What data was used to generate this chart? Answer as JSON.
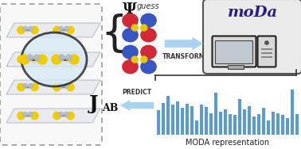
{
  "bar_values": [
    0.48,
    0.62,
    0.75,
    0.58,
    0.65,
    0.52,
    0.6,
    0.55,
    0.28,
    0.58,
    0.54,
    0.42,
    0.82,
    0.44,
    0.5,
    0.4,
    0.38,
    0.7,
    0.5,
    0.55,
    0.35,
    0.4,
    0.52,
    0.28,
    0.45,
    0.42,
    0.38,
    0.32,
    0.88,
    0.4
  ],
  "bar_color": "#5b9bd5",
  "bar_label": "MODA representation",
  "transform_label": "TRANSFORM",
  "predict_label": "PREDICT",
  "moda_text": "moDa",
  "psi_label": "Ψ",
  "psi_superscript": "guess",
  "j_label": "J",
  "j_subscript": "AB",
  "bg_color": "#ffffff",
  "box_bg": "#ebebeb",
  "box_edge": "#555555",
  "moda_color": "#2d1b8e",
  "arrow_color": "#85c1e9",
  "arrow_fill": "#a8d4f0",
  "bracket_color": "#222222",
  "yellow": "#e8c800",
  "blue_orb": "#2244bb",
  "red_orb": "#cc1122",
  "crystal_bg": "#f8f8f8",
  "dashed_color": "#999999",
  "bond_color": "#7b3f00",
  "atom_yellow": "#f0cc00",
  "atom_grey": "#b0b8c8"
}
